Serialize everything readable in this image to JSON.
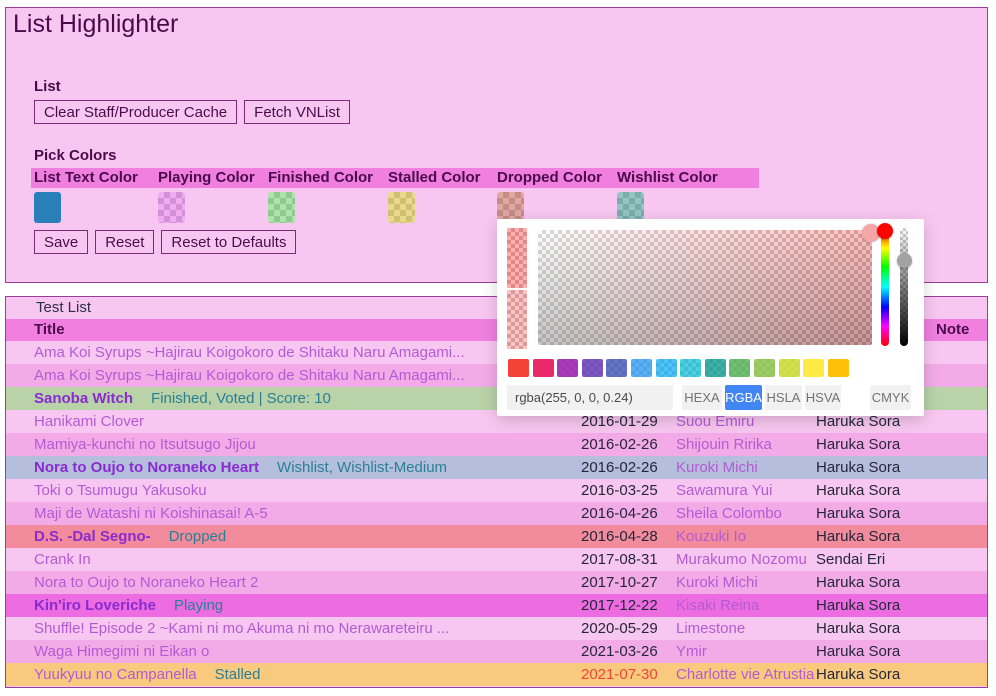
{
  "app": {
    "title": "List Highlighter"
  },
  "colors": {
    "body_bg": "#ffffff",
    "panel_bg": "#f8c7f1",
    "panel_border": "#993d99",
    "band_bg": "#f07fdf",
    "heading_text": "#4b0b4b",
    "row_light": "#f8c7f1",
    "row_dark": "#f3abe8",
    "row_finished": "#b9d2a8",
    "row_wishlist": "#b6bedd",
    "row_dropped": "#f28b9b",
    "row_playing": "#ee6ce2",
    "row_stalled": "#f9c97e"
  },
  "settings": {
    "list_label": "List",
    "list_buttons": [
      "Clear Staff/Producer Cache",
      "Fetch VNList"
    ],
    "pick_colors_label": "Pick Colors",
    "color_columns": [
      {
        "label": "List Text Color",
        "type": "solid",
        "color": "#2980b9"
      },
      {
        "label": "Playing Color",
        "type": "alpha",
        "color": "rgba(219,72,226,0.45)"
      },
      {
        "label": "Finished Color",
        "type": "alpha",
        "color": "rgba(72,196,72,0.45)"
      },
      {
        "label": "Stalled Color",
        "type": "alpha",
        "color": "rgba(212,180,28,0.5)"
      },
      {
        "label": "Dropped Color",
        "type": "alpha",
        "color": "rgba(188,62,50,0.45)"
      },
      {
        "label": "Wishlist Color",
        "type": "alpha",
        "color": "rgba(40,140,135,0.5)"
      }
    ],
    "action_buttons": [
      "Save",
      "Reset",
      "Reset to Defaults"
    ]
  },
  "color_picker": {
    "last_color": "rgba(255,0,0,0.32)",
    "current_color": "rgba(255,0,0,0.24)",
    "hue_color": "#ff0000",
    "input_value": "rgba(255, 0, 0, 0.24)",
    "formats": [
      "HEXA",
      "RGBA",
      "HSLA",
      "HSVA",
      "CMYK"
    ],
    "active_format": "RGBA",
    "active_format_color": "#4285f4",
    "swatches": [
      "rgba(244,67,54,1)",
      "rgba(233,30,99,0.95)",
      "rgba(156,39,176,0.9)",
      "rgba(103,58,183,0.85)",
      "rgba(63,81,181,0.8)",
      "rgba(33,150,243,0.75)",
      "rgba(3,169,244,0.7)",
      "rgba(0,188,212,0.7)",
      "rgba(0,150,136,0.75)",
      "rgba(76,175,80,0.8)",
      "rgba(139,195,74,0.85)",
      "rgba(205,220,57,0.9)",
      "rgba(255,235,59,0.95)",
      "rgba(255,193,7,1)"
    ]
  },
  "test_list": {
    "caption": "Test List",
    "header": {
      "title": "Title",
      "released": "",
      "character": "",
      "cast": "",
      "note": "Note"
    },
    "rows": [
      {
        "title": "Ama Koi Syrups ~Hajirau Koigokoro de Shitaku Naru Amagami...",
        "bold": false,
        "status": "",
        "date": "",
        "character": "",
        "cast": "",
        "note": "",
        "bg": "light",
        "date_future": false
      },
      {
        "title": "Ama Koi Syrups ~Hajirau Koigokoro de Shitaku Naru Amagami...",
        "bold": false,
        "status": "",
        "date": "",
        "character": "",
        "cast": "",
        "note": "",
        "bg": "dark",
        "date_future": false
      },
      {
        "title": "Sanoba Witch",
        "bold": true,
        "status": "Finished, Voted | Score: 10",
        "date": "",
        "character": "",
        "cast": "",
        "note": "",
        "bg": "finished",
        "date_future": false
      },
      {
        "title": "Hanikami Clover",
        "bold": false,
        "status": "",
        "date": "2016-01-29",
        "character": "Suou Emiru",
        "cast": "Haruka Sora",
        "note": "",
        "bg": "light",
        "date_future": false
      },
      {
        "title": "Mamiya-kunchi no Itsutsugo Jijou",
        "bold": false,
        "status": "",
        "date": "2016-02-26",
        "character": "Shijouin Ririka",
        "cast": "Haruka Sora",
        "note": "",
        "bg": "dark",
        "date_future": false
      },
      {
        "title": "Nora to Oujo to Noraneko Heart",
        "bold": true,
        "status": "Wishlist, Wishlist-Medium",
        "date": "2016-02-26",
        "character": "Kuroki Michi",
        "cast": "Haruka Sora",
        "note": "",
        "bg": "wishlist",
        "date_future": false
      },
      {
        "title": "Toki o Tsumugu Yakusoku",
        "bold": false,
        "status": "",
        "date": "2016-03-25",
        "character": "Sawamura Yui",
        "cast": "Haruka Sora",
        "note": "",
        "bg": "light",
        "date_future": false
      },
      {
        "title": "Maji de Watashi ni Koishinasai! A-5",
        "bold": false,
        "status": "",
        "date": "2016-04-26",
        "character": "Sheila Colombo",
        "cast": "Haruka Sora",
        "note": "",
        "bg": "dark",
        "date_future": false
      },
      {
        "title": "D.S. -Dal Segno-",
        "bold": true,
        "status": "Dropped",
        "date": "2016-04-28",
        "character": "Kouzuki Io",
        "cast": "Haruka Sora",
        "note": "",
        "bg": "dropped",
        "date_future": false
      },
      {
        "title": "Crank In",
        "bold": false,
        "status": "",
        "date": "2017-08-31",
        "character": "Murakumo Nozomu",
        "cast": "Sendai Eri",
        "note": "",
        "bg": "light",
        "date_future": false
      },
      {
        "title": "Nora to Oujo to Noraneko Heart 2",
        "bold": false,
        "status": "",
        "date": "2017-10-27",
        "character": "Kuroki Michi",
        "cast": "Haruka Sora",
        "note": "",
        "bg": "dark",
        "date_future": false
      },
      {
        "title": "Kin'iro Loveriche",
        "bold": true,
        "status": "Playing",
        "date": "2017-12-22",
        "character": "Kisaki Reina",
        "cast": "Haruka Sora",
        "note": "",
        "bg": "playing",
        "date_future": false
      },
      {
        "title": "Shuffle! Episode 2 ~Kami ni mo Akuma ni mo Nerawareteiru ...",
        "bold": false,
        "status": "",
        "date": "2020-05-29",
        "character": "Limestone",
        "cast": "Haruka Sora",
        "note": "",
        "bg": "light",
        "date_future": false
      },
      {
        "title": "Waga Himegimi ni Eikan o",
        "bold": false,
        "status": "",
        "date": "2021-03-26",
        "character": "Ymir",
        "cast": "Haruka Sora",
        "note": "",
        "bg": "dark",
        "date_future": false
      },
      {
        "title": "Yuukyuu no Campanella",
        "bold": false,
        "status": "Stalled",
        "date": "2021-07-30",
        "character": "Charlotte vie Atrustia",
        "cast": "Haruka Sora",
        "note": "",
        "bg": "stalled",
        "date_future": true
      }
    ]
  }
}
